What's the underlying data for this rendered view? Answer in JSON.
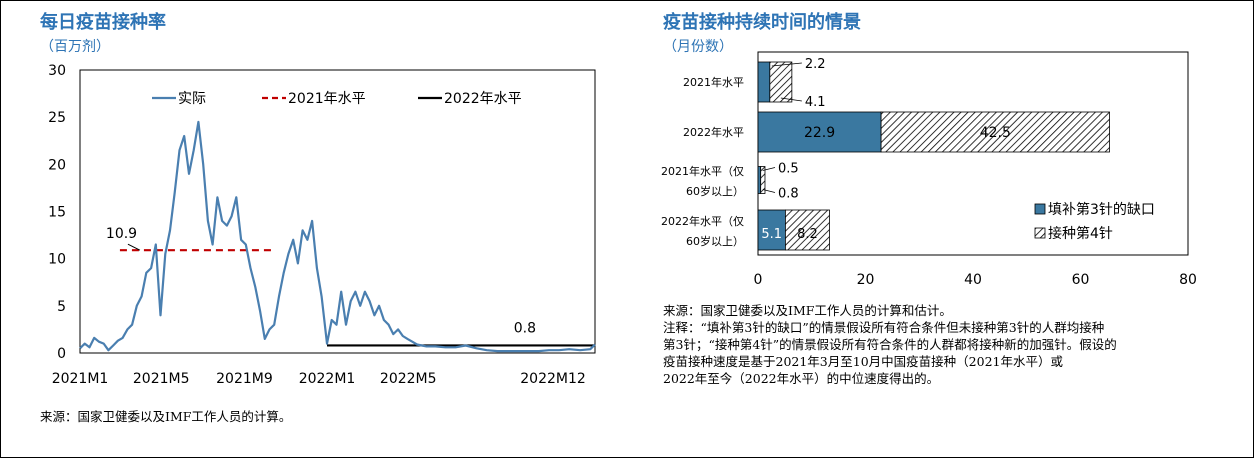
{
  "left": {
    "title": "每日疫苗接种率",
    "unit": "（百万剂）",
    "source": "来源：国家卫健委以及IMF工作人员的计算。"
  },
  "right": {
    "title": "疫苗接种持续时间的情景",
    "unit": "（月份数）",
    "notes": [
      "来源：国家卫健委以及IMF工作人员的计算和估计。",
      "注释：“填补第3针的缺口”的情景假设所有符合条件但未接种第3针的人群均接种",
      "第3针；“接种第4针”的情景假设所有符合条件的人群都将接种新的加强针。假设的",
      "疫苗接种速度是基于2021年3月至10月中国疫苗接种（2021年水平）或",
      "2022年至今（2022年水平）的中位速度得出的。"
    ]
  },
  "chart_data": [
    {
      "type": "line",
      "title": "每日疫苗接种率",
      "ylabel": "（百万剂）",
      "ylim": [
        0,
        30
      ],
      "yticks": [
        0,
        5,
        10,
        15,
        20,
        25,
        30
      ],
      "xlim": [
        "2021-01",
        "2023-02"
      ],
      "xticks": [
        {
          "label": "2021M1",
          "x": "2021-01"
        },
        {
          "label": "2021M5",
          "x": "2021-05"
        },
        {
          "label": "2021M9",
          "x": "2021-09"
        },
        {
          "label": "2022M1",
          "x": "2022-01"
        },
        {
          "label": "2022M5",
          "x": "2022-05"
        },
        {
          "label": "2022M12",
          "x": "2022-12"
        }
      ],
      "legend": [
        "实际",
        "2021年水平",
        "2022年水平"
      ],
      "legend_position": "top",
      "grid": false,
      "series": [
        {
          "name": "实际",
          "color": "#4a7fb0",
          "points": [
            [
              "2021-01-01",
              0.5
            ],
            [
              "2021-01-08",
              1.0
            ],
            [
              "2021-01-15",
              0.6
            ],
            [
              "2021-01-22",
              1.6
            ],
            [
              "2021-01-29",
              1.2
            ],
            [
              "2021-02-05",
              1.0
            ],
            [
              "2021-02-12",
              0.3
            ],
            [
              "2021-02-19",
              0.8
            ],
            [
              "2021-02-26",
              1.3
            ],
            [
              "2021-03-05",
              1.6
            ],
            [
              "2021-03-12",
              2.5
            ],
            [
              "2021-03-19",
              3.0
            ],
            [
              "2021-03-26",
              5.0
            ],
            [
              "2021-04-02",
              6.0
            ],
            [
              "2021-04-09",
              8.5
            ],
            [
              "2021-04-16",
              9.0
            ],
            [
              "2021-04-23",
              11.5
            ],
            [
              "2021-04-30",
              4.0
            ],
            [
              "2021-05-07",
              10.5
            ],
            [
              "2021-05-14",
              13.0
            ],
            [
              "2021-05-21",
              17.0
            ],
            [
              "2021-05-28",
              21.5
            ],
            [
              "2021-06-04",
              23.0
            ],
            [
              "2021-06-11",
              19.0
            ],
            [
              "2021-06-18",
              21.5
            ],
            [
              "2021-06-25",
              24.5
            ],
            [
              "2021-07-02",
              20.0
            ],
            [
              "2021-07-09",
              14.0
            ],
            [
              "2021-07-16",
              11.5
            ],
            [
              "2021-07-23",
              16.5
            ],
            [
              "2021-07-30",
              14.0
            ],
            [
              "2021-08-06",
              13.5
            ],
            [
              "2021-08-13",
              14.5
            ],
            [
              "2021-08-20",
              16.5
            ],
            [
              "2021-08-27",
              12.0
            ],
            [
              "2021-09-03",
              11.5
            ],
            [
              "2021-09-10",
              9.0
            ],
            [
              "2021-09-17",
              7.0
            ],
            [
              "2021-09-24",
              4.5
            ],
            [
              "2021-10-01",
              1.5
            ],
            [
              "2021-10-08",
              2.5
            ],
            [
              "2021-10-15",
              3.0
            ],
            [
              "2021-10-22",
              6.0
            ],
            [
              "2021-10-29",
              8.5
            ],
            [
              "2021-11-05",
              10.5
            ],
            [
              "2021-11-12",
              12.0
            ],
            [
              "2021-11-19",
              9.5
            ],
            [
              "2021-11-26",
              13.0
            ],
            [
              "2021-12-03",
              12.0
            ],
            [
              "2021-12-10",
              14.0
            ],
            [
              "2021-12-17",
              9.0
            ],
            [
              "2021-12-24",
              6.0
            ],
            [
              "2022-01-01",
              1.0
            ],
            [
              "2022-01-08",
              3.5
            ],
            [
              "2022-01-15",
              3.0
            ],
            [
              "2022-01-22",
              6.5
            ],
            [
              "2022-01-29",
              3.0
            ],
            [
              "2022-02-05",
              5.5
            ],
            [
              "2022-02-12",
              6.5
            ],
            [
              "2022-02-19",
              5.0
            ],
            [
              "2022-02-26",
              6.5
            ],
            [
              "2022-03-05",
              5.5
            ],
            [
              "2022-03-12",
              4.0
            ],
            [
              "2022-03-19",
              5.0
            ],
            [
              "2022-03-26",
              3.5
            ],
            [
              "2022-04-02",
              3.0
            ],
            [
              "2022-04-09",
              2.0
            ],
            [
              "2022-04-16",
              2.5
            ],
            [
              "2022-04-23",
              1.8
            ],
            [
              "2022-04-30",
              1.5
            ],
            [
              "2022-05-07",
              1.2
            ],
            [
              "2022-05-14",
              0.9
            ],
            [
              "2022-05-21",
              0.8
            ],
            [
              "2022-05-28",
              0.7
            ],
            [
              "2022-06-10",
              0.7
            ],
            [
              "2022-06-25",
              0.6
            ],
            [
              "2022-07-10",
              0.6
            ],
            [
              "2022-07-25",
              0.8
            ],
            [
              "2022-08-10",
              0.5
            ],
            [
              "2022-08-25",
              0.3
            ],
            [
              "2022-09-10",
              0.2
            ],
            [
              "2022-09-25",
              0.2
            ],
            [
              "2022-10-10",
              0.2
            ],
            [
              "2022-10-25",
              0.2
            ],
            [
              "2022-11-10",
              0.2
            ],
            [
              "2022-11-25",
              0.3
            ],
            [
              "2022-12-10",
              0.3
            ],
            [
              "2022-12-25",
              0.4
            ],
            [
              "2023-01-10",
              0.3
            ],
            [
              "2023-01-25",
              0.4
            ],
            [
              "2023-02-01",
              0.9
            ]
          ]
        },
        {
          "name": "2021年水平",
          "color": "#c00000",
          "dashed": true,
          "value": 10.9,
          "x_start": "2021-03-01",
          "x_end": "2021-10-15"
        },
        {
          "name": "2022年水平",
          "color": "#000000",
          "dashed": false,
          "value": 0.8,
          "x_start": "2022-01-01",
          "x_end": "2023-02-01"
        }
      ],
      "annotations": [
        {
          "text": "10.9",
          "x": "2021-03-01",
          "y": 10.9
        },
        {
          "text": "0.8",
          "x": "2022-10-01",
          "y": 0.8
        }
      ]
    },
    {
      "type": "bar",
      "orientation": "horizontal",
      "stacked": true,
      "title": "疫苗接种持续时间的情景",
      "xlabel": "（月份数）",
      "xlim": [
        0,
        80
      ],
      "xticks": [
        0,
        20,
        40,
        60,
        80
      ],
      "grid": false,
      "legend_position": "lower-right",
      "categories": [
        "2021年水平",
        "2022年水平",
        "2021年水平（仅60岁以上）",
        "2022年水平（仅60岁以上）"
      ],
      "category_labels": [
        [
          "2021年水平"
        ],
        [
          "2022年水平"
        ],
        [
          "2021年水平（仅",
          "60岁以上）"
        ],
        [
          "2022年水平（仅",
          "60岁以上）"
        ]
      ],
      "series": [
        {
          "name": "填补第3针的缺口",
          "color": "#3a78a0",
          "values": [
            2.2,
            22.9,
            0.5,
            5.1
          ],
          "labels": [
            "2.2",
            "22.9",
            "0.5",
            "5.1"
          ]
        },
        {
          "name": "接种第4针",
          "color": "#ffffff",
          "hatch": true,
          "values": [
            4.1,
            42.5,
            0.8,
            8.2
          ],
          "labels": [
            "4.1",
            "42.5",
            "0.8",
            "8.2"
          ]
        }
      ]
    }
  ]
}
